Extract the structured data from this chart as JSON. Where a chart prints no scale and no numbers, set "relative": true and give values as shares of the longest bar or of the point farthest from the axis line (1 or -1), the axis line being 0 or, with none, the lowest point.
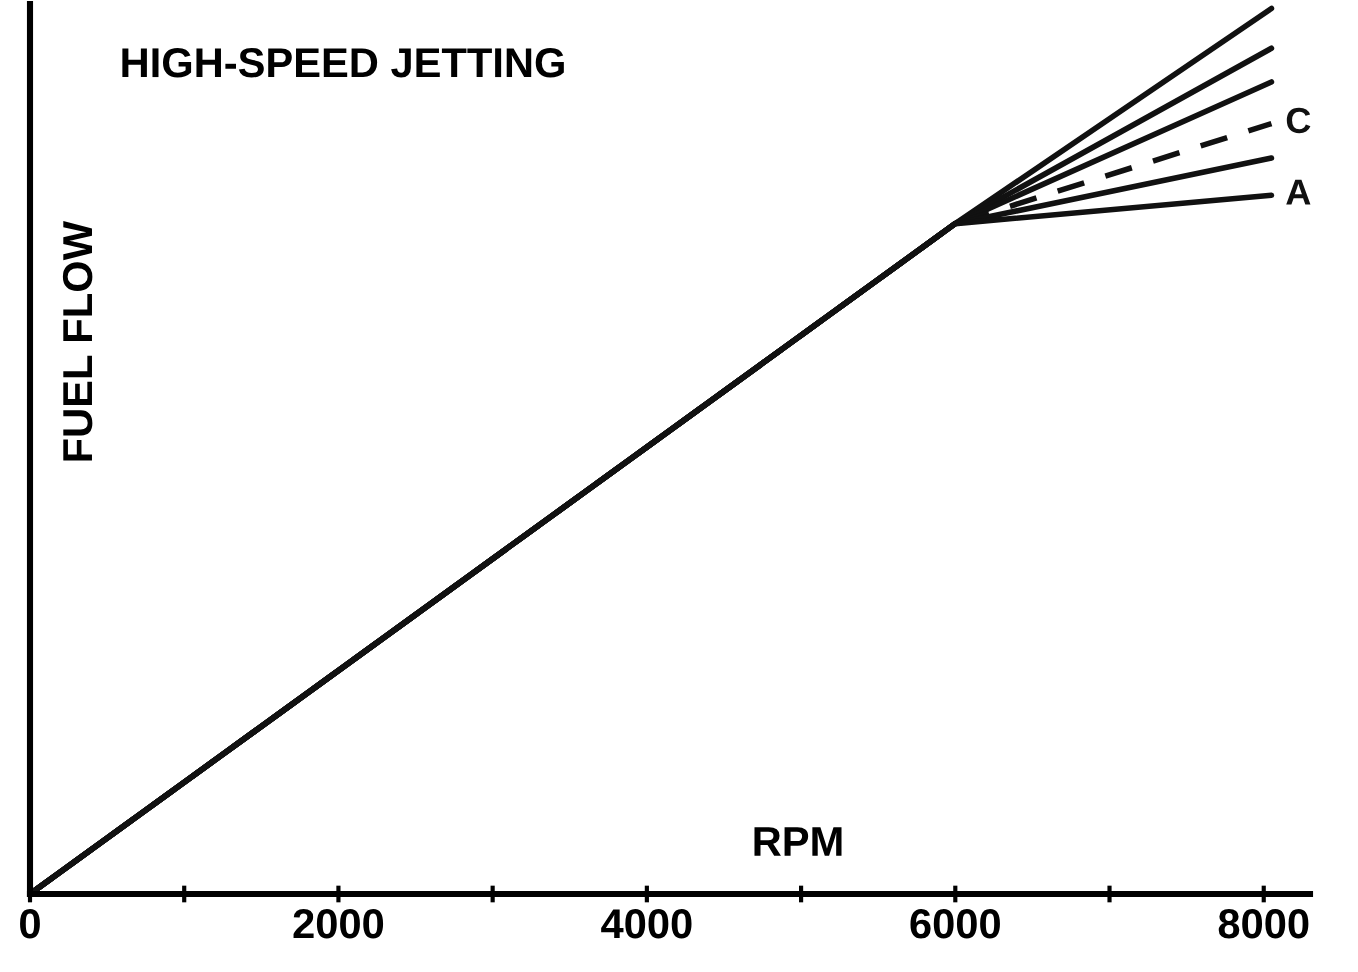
{
  "chart_data": {
    "type": "line",
    "title": "HIGH-SPEED JETTING",
    "xlabel": "RPM",
    "ylabel": "FUEL FLOW",
    "relative": true,
    "xlim": [
      0,
      8300
    ],
    "xticks": [
      0,
      {
        "value": 1000,
        "label": null
      },
      2000,
      {
        "value": 3000,
        "label": null
      },
      4000,
      {
        "value": 5000,
        "label": null
      },
      6000,
      {
        "value": 7000,
        "label": null
      },
      8000
    ],
    "line_style": "solid",
    "marker": "none",
    "grid": false,
    "legend": false,
    "series": [
      {
        "color": "#111111",
        "x": [
          0,
          6000,
          8050
        ],
        "values": [
          0,
          0.757,
          1
        ]
      },
      {
        "color": "#111111",
        "x": [
          0,
          6000,
          8050
        ],
        "values": [
          0,
          0.757,
          0.955
        ]
      },
      {
        "color": "#111111",
        "x": [
          0,
          6000,
          8050
        ],
        "values": [
          0,
          0.757,
          0.917
        ]
      },
      {
        "name": "C",
        "color": "#111111",
        "line_style": "dashed",
        "x": [
          0,
          6000,
          8050
        ],
        "values": [
          0,
          0.757,
          0.87
        ]
      },
      {
        "color": "#111111",
        "x": [
          0,
          6000,
          8050
        ],
        "values": [
          0,
          0.757,
          0.831
        ]
      },
      {
        "name": "A",
        "color": "#111111",
        "x": [
          0,
          6000,
          8050
        ],
        "values": [
          0,
          0.757,
          0.789
        ]
      }
    ]
  }
}
